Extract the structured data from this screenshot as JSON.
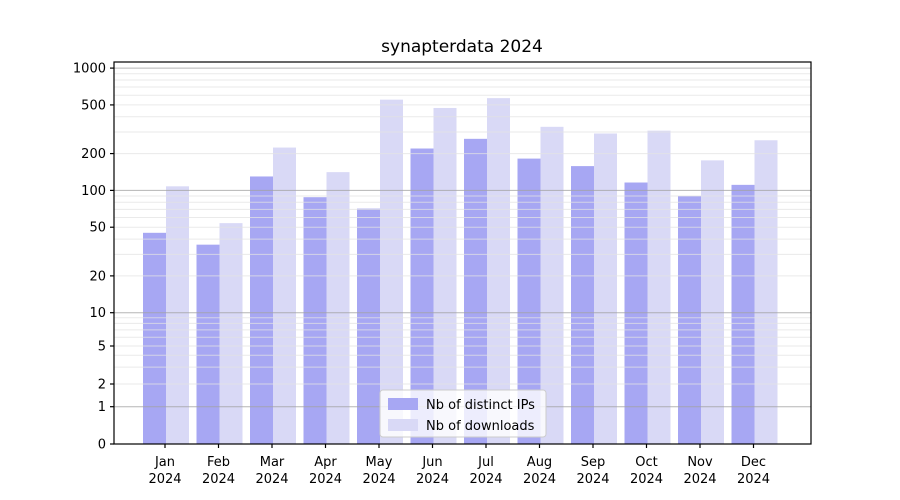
{
  "title": "synapterdata 2024",
  "chart_data": {
    "type": "bar",
    "title": "synapterdata 2024",
    "categories": [
      "Jan 2024",
      "Feb 2024",
      "Mar 2024",
      "Apr 2024",
      "May 2024",
      "Jun 2024",
      "Jul 2024",
      "Aug 2024",
      "Sep 2024",
      "Oct 2024",
      "Nov 2024",
      "Dec 2024"
    ],
    "series": [
      {
        "name": "Nb of distinct IPs",
        "color": "#a7a7f3",
        "values": [
          45,
          36,
          130,
          88,
          71,
          220,
          264,
          182,
          158,
          116,
          90,
          111
        ]
      },
      {
        "name": "Nb of downloads",
        "color": "#d9d9f6",
        "values": [
          108,
          54,
          224,
          141,
          552,
          472,
          568,
          331,
          292,
          308,
          176,
          257
        ]
      }
    ],
    "xlabel": "",
    "ylabel": "",
    "yscale": "symlog",
    "yticks": [
      0,
      1,
      2,
      5,
      10,
      20,
      50,
      100,
      200,
      500,
      1000
    ],
    "ylim": [
      0,
      1120
    ],
    "grid": true,
    "gridlines_above_bars": true,
    "legend": {
      "position": "lower center",
      "entries": [
        "Nb of distinct IPs",
        "Nb of downloads"
      ]
    },
    "colors": {
      "bar_dark": "#a7a7f3",
      "bar_light": "#d9d9f6",
      "grid_minor": "#e3e3e3",
      "grid_decade": "#a3a3a3",
      "axis": "#000000",
      "legend_border": "#cccccc",
      "legend_bg": "rgba(255,255,255,0.8)"
    }
  }
}
